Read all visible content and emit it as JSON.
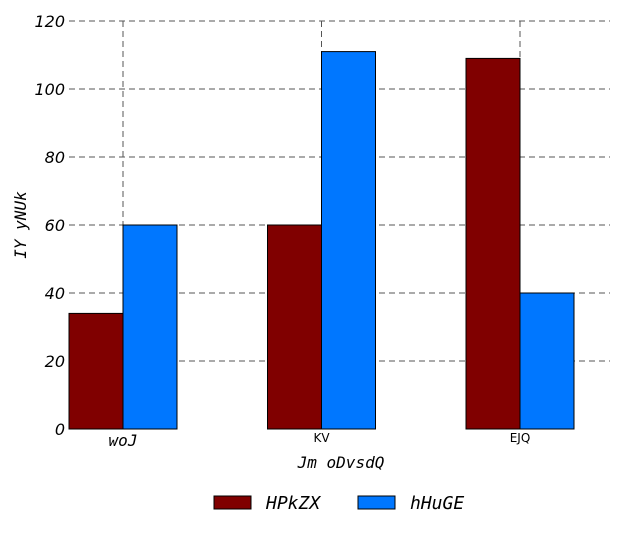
{
  "chart_data": {
    "type": "bar",
    "categories": [
      "woJ",
      "KV",
      "EJQ"
    ],
    "series": [
      {
        "name": "HPkZX",
        "color": "#800000",
        "values": [
          34,
          60,
          109
        ]
      },
      {
        "name": "hHuGE",
        "color": "#0077ff",
        "values": [
          60,
          111,
          40
        ]
      }
    ],
    "xlabel": "Jm oDvsdQ",
    "ylabel": "IY yNUk",
    "ylim": [
      0,
      120
    ],
    "yticks": [
      0,
      20,
      40,
      60,
      80,
      100,
      120
    ],
    "grid": true,
    "legend_position": "bottom-center"
  }
}
